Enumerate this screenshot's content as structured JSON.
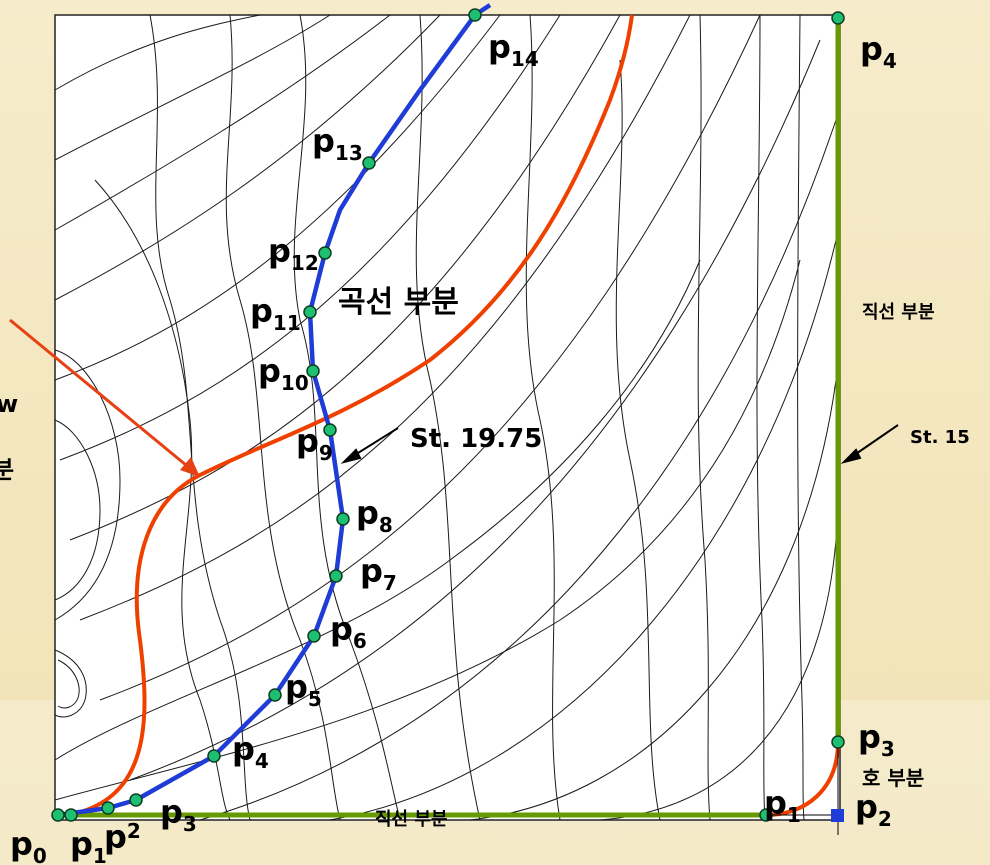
{
  "colors": {
    "panel_bg": "#ffffff",
    "contour": "#1a1a1a",
    "blue_curve": "#1f3cd6",
    "red_curve": "#f04000",
    "green_line": "#669a00",
    "node_fill": "#1fbf72",
    "node_stroke": "#0a3d22",
    "arrow": "#e74012",
    "square": "#1f3cd6"
  },
  "labels": {
    "curved_part": "곡선 부분",
    "straight_right": "직선 부분",
    "straight_bottom": "직선 부분",
    "arc_part": "호 부분",
    "station_mid": "St. 19.75",
    "station_right": "St. 15",
    "left_cut_1": "w",
    "left_cut_2": "분"
  },
  "blue_points": [
    {
      "base": "p",
      "sub": "14"
    },
    {
      "base": "p",
      "sub": "13"
    },
    {
      "base": "p",
      "sub": "12"
    },
    {
      "base": "p",
      "sub": "11"
    },
    {
      "base": "p",
      "sub": "10"
    },
    {
      "base": "p",
      "sub": "9"
    },
    {
      "base": "p",
      "sub": "8"
    },
    {
      "base": "p",
      "sub": "7"
    },
    {
      "base": "p",
      "sub": "6"
    },
    {
      "base": "p",
      "sub": "5"
    },
    {
      "base": "p",
      "sub": "4"
    },
    {
      "base": "p",
      "sub": "3"
    },
    {
      "base": "p",
      "sub": "2"
    },
    {
      "base": "p",
      "sub": "1"
    },
    {
      "base": "p",
      "sub": "0"
    }
  ],
  "green_points": [
    {
      "base": "p",
      "sub": "4"
    },
    {
      "base": "p",
      "sub": "3"
    },
    {
      "base": "p",
      "sub": "2"
    },
    {
      "base": "p",
      "sub": "1"
    }
  ]
}
